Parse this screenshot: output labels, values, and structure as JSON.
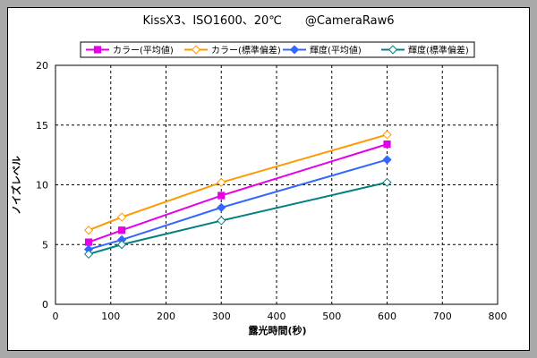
{
  "chart_data": {
    "type": "line",
    "title": "KissX3、ISO1600、20℃　　@CameraRaw6",
    "xlabel": "露光時間(秒)",
    "ylabel": "ノイズレベル",
    "xlim": [
      0,
      800
    ],
    "ylim": [
      0,
      20
    ],
    "xticks": [
      0,
      100,
      200,
      300,
      400,
      500,
      600,
      700,
      800
    ],
    "yticks": [
      0,
      5,
      10,
      15,
      20
    ],
    "grid": true,
    "legend_position": "top",
    "x": [
      60,
      120,
      300,
      600
    ],
    "series": [
      {
        "name": "カラー(平均値)",
        "color": "#e600e6",
        "marker": "square",
        "values": [
          5.2,
          6.2,
          9.1,
          13.4
        ]
      },
      {
        "name": "カラー(標準偏差)",
        "color": "#ff9900",
        "marker": "diamond-open",
        "values": [
          6.2,
          7.3,
          10.2,
          14.2
        ]
      },
      {
        "name": "輝度(平均値)",
        "color": "#3366ff",
        "marker": "diamond",
        "values": [
          4.6,
          5.4,
          8.1,
          12.1
        ]
      },
      {
        "name": "輝度(標準偏差)",
        "color": "#008080",
        "marker": "diamond-open",
        "values": [
          4.2,
          5.0,
          7.0,
          10.2
        ]
      }
    ]
  }
}
